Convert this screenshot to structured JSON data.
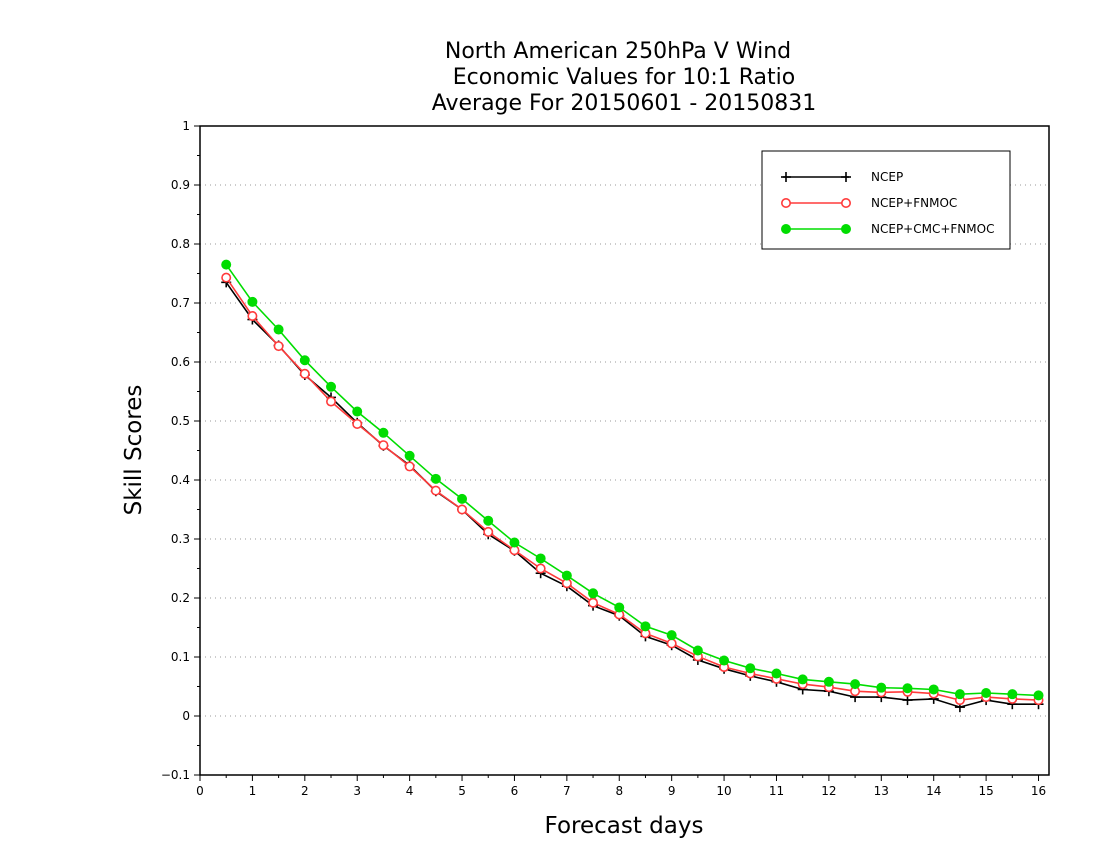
{
  "chart_data": {
    "type": "line",
    "title_lines": [
      "North American 250hPa V Wind",
      "Economic Values for 10:1 Ratio",
      "Average For 20150601 - 20150831"
    ],
    "xlabel": "Forecast days",
    "ylabel": "Skill Scores",
    "xlim": [
      0,
      16.2
    ],
    "ylim": [
      -0.1,
      1
    ],
    "xticks": [
      0,
      1,
      2,
      3,
      4,
      5,
      6,
      7,
      8,
      9,
      10,
      11,
      12,
      13,
      14,
      15,
      16
    ],
    "xtick_labels": [
      "0",
      "1",
      "2",
      "3",
      "4",
      "5",
      "6",
      "7",
      "8",
      "9",
      "10",
      "11",
      "12",
      "13",
      "14",
      "15",
      "16"
    ],
    "yticks": [
      -0.1,
      0,
      0.1,
      0.2,
      0.3,
      0.4,
      0.5,
      0.6,
      0.7,
      0.8,
      0.9,
      1
    ],
    "ytick_labels": [
      "−0.1",
      "0",
      "0.1",
      "0.2",
      "0.3",
      "0.4",
      "0.5",
      "0.6",
      "0.7",
      "0.8",
      "0.9",
      "1"
    ],
    "grid": "horizontal dotted",
    "legend_position": "top-right",
    "x": [
      0.5,
      1,
      1.5,
      2,
      2.5,
      3,
      3.5,
      4,
      4.5,
      5,
      5.5,
      6,
      6.5,
      7,
      7.5,
      8,
      8.5,
      9,
      9.5,
      10,
      10.5,
      11,
      11.5,
      12,
      12.5,
      13,
      13.5,
      14,
      14.5,
      15,
      15.5,
      16
    ],
    "series": [
      {
        "name": "NCEP",
        "color": "#000000",
        "marker": "plus",
        "values": [
          0.735,
          0.672,
          0.628,
          0.578,
          0.54,
          0.497,
          0.458,
          0.425,
          0.381,
          0.35,
          0.308,
          0.28,
          0.242,
          0.22,
          0.187,
          0.17,
          0.135,
          0.12,
          0.095,
          0.08,
          0.068,
          0.058,
          0.045,
          0.042,
          0.032,
          0.032,
          0.027,
          0.029,
          0.015,
          0.027,
          0.02,
          0.02
        ]
      },
      {
        "name": "NCEP+FNMOC",
        "color": "#ff3b3b",
        "marker": "open-circle",
        "values": [
          0.743,
          0.678,
          0.627,
          0.58,
          0.533,
          0.495,
          0.459,
          0.423,
          0.382,
          0.35,
          0.312,
          0.281,
          0.25,
          0.225,
          0.192,
          0.172,
          0.14,
          0.123,
          0.101,
          0.083,
          0.072,
          0.063,
          0.054,
          0.049,
          0.042,
          0.04,
          0.041,
          0.038,
          0.027,
          0.032,
          0.029,
          0.027
        ]
      },
      {
        "name": "NCEP+CMC+FNMOC",
        "color": "#00dd00",
        "marker": "filled-circle",
        "values": [
          0.765,
          0.702,
          0.655,
          0.603,
          0.558,
          0.516,
          0.48,
          0.441,
          0.402,
          0.368,
          0.331,
          0.294,
          0.267,
          0.238,
          0.208,
          0.184,
          0.152,
          0.137,
          0.111,
          0.094,
          0.081,
          0.072,
          0.062,
          0.058,
          0.054,
          0.048,
          0.047,
          0.045,
          0.037,
          0.039,
          0.037,
          0.035
        ]
      }
    ]
  }
}
